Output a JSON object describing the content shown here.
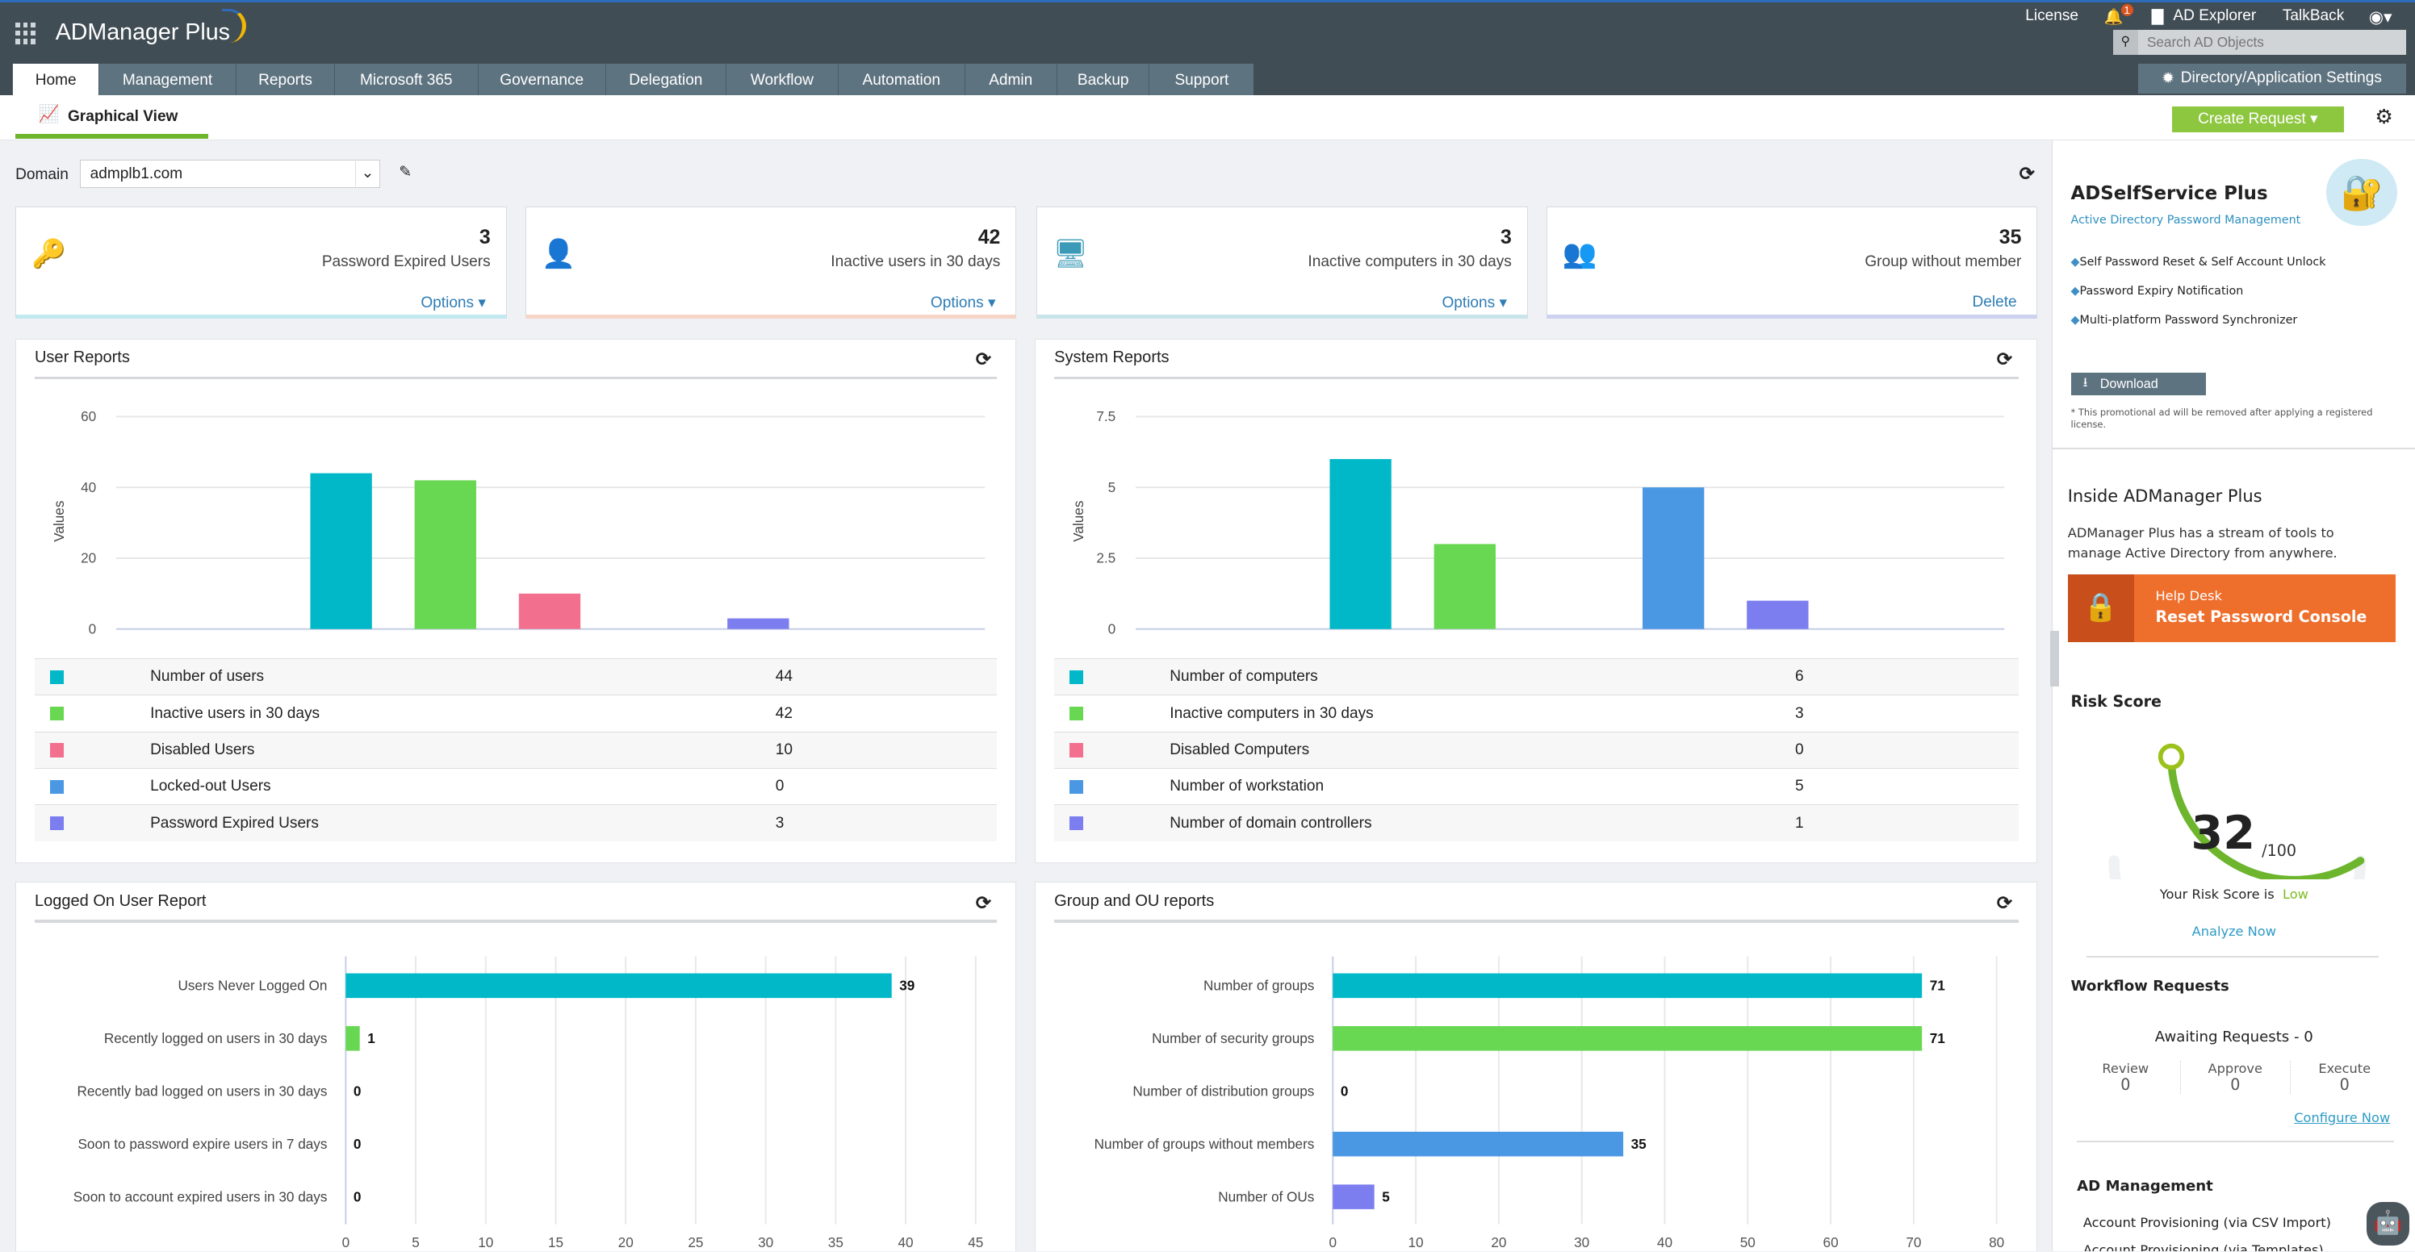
{
  "app": {
    "title": "ADManager Plus",
    "top_links": {
      "license": "License",
      "notif_count": "1",
      "ad_explorer": "AD Explorer",
      "talkback": "TalkBack"
    },
    "search_placeholder": "Search AD Objects",
    "settings_button": "Directory/Application Settings"
  },
  "tabs": [
    "Home",
    "Management",
    "Reports",
    "Microsoft 365",
    "Governance",
    "Delegation",
    "Workflow",
    "Automation",
    "Admin",
    "Backup",
    "Support"
  ],
  "subheader": {
    "view": "Graphical View",
    "create_request": "Create Request"
  },
  "domain": {
    "label": "Domain",
    "value": "admplb1.com"
  },
  "cards": [
    {
      "value": "3",
      "label": "Password Expired Users",
      "action": "Options ▾",
      "color": "#1aa9c6"
    },
    {
      "value": "42",
      "label": "Inactive users in 30 days",
      "action": "Options ▾",
      "color": "#e0622a"
    },
    {
      "value": "3",
      "label": "Inactive computers in 30 days",
      "action": "Options ▾",
      "color": "#3a9ab8"
    },
    {
      "value": "35",
      "label": "Group without member",
      "action": "Delete",
      "color": "#4055c8"
    }
  ],
  "panels": {
    "user": "User Reports",
    "system": "System Reports",
    "logon": "Logged On User Report",
    "group": "Group and OU reports"
  },
  "chart_data": [
    {
      "type": "bar",
      "title": "User Reports",
      "ylabel": "Values",
      "ylim": [
        0,
        60
      ],
      "yticks": [
        0,
        20,
        40,
        60
      ],
      "categories": [
        "Number of users",
        "Inactive users in 30 days",
        "Disabled Users",
        "Locked-out Users",
        "Password Expired Users"
      ],
      "values": [
        44,
        42,
        10,
        0,
        3
      ],
      "colors": [
        "#00b8c8",
        "#68d752",
        "#f2708e",
        "#4a98e4",
        "#7c7ef0"
      ],
      "grid": true,
      "legend": "bottom-table"
    },
    {
      "type": "bar",
      "title": "System Reports",
      "ylabel": "Values",
      "ylim": [
        0,
        7.5
      ],
      "yticks": [
        0,
        2.5,
        5,
        7.5
      ],
      "categories": [
        "Number of computers",
        "Inactive computers in 30 days",
        "Disabled Computers",
        "Number of workstation",
        "Number of domain controllers"
      ],
      "values": [
        6,
        3,
        0,
        5,
        1
      ],
      "colors": [
        "#00b8c8",
        "#68d752",
        "#f2708e",
        "#4a98e4",
        "#7c7ef0"
      ],
      "grid": true,
      "legend": "bottom-table"
    },
    {
      "type": "bar",
      "orientation": "horizontal",
      "title": "Logged On User Report",
      "xlim": [
        0,
        45
      ],
      "xticks": [
        0,
        5,
        10,
        15,
        20,
        25,
        30,
        35,
        40,
        45
      ],
      "categories": [
        "Users Never Logged On",
        "Recently logged on users in 30 days",
        "Recently bad logged on users in 30 days",
        "Soon to password expire users in 7 days",
        "Soon to account expired users in 30 days"
      ],
      "values": [
        39,
        1,
        0,
        0,
        0
      ],
      "colors": [
        "#00b8c8",
        "#68d752",
        "#f2708e",
        "#4a98e4",
        "#7c7ef0"
      ],
      "grid": true
    },
    {
      "type": "bar",
      "orientation": "horizontal",
      "title": "Group and OU reports",
      "xlim": [
        0,
        80
      ],
      "xticks": [
        0,
        10,
        20,
        30,
        40,
        50,
        60,
        70,
        80
      ],
      "categories": [
        "Number of groups",
        "Number of security groups",
        "Number of distribution groups",
        "Number of groups without members",
        "Number of OUs"
      ],
      "values": [
        71,
        71,
        0,
        35,
        5
      ],
      "colors": [
        "#00b8c8",
        "#68d752",
        "#f2708e",
        "#4a98e4",
        "#7c7ef0"
      ],
      "grid": true
    }
  ],
  "promo": {
    "title": "ADSelfService Plus",
    "subtitle": "Active Directory Password Management",
    "features": [
      "Self Password Reset & Self Account Unlock",
      "Password Expiry Notification",
      "Multi-platform Password Synchronizer"
    ],
    "download": "Download",
    "note": "* This promotional ad will be removed after applying a registered license."
  },
  "inside": {
    "title": "Inside ADManager Plus",
    "desc": "ADManager Plus has a stream of tools to manage Active Directory from anywhere.",
    "banner_top": "Help Desk",
    "banner_main": "Reset Password Console"
  },
  "risk": {
    "title": "Risk Score",
    "score": 32,
    "score_text": "32",
    "max_text": "/100",
    "status_prefix": "Your Risk Score is",
    "status": "Low",
    "status_color": "#7cbb1e",
    "analyze": "Analyze Now"
  },
  "workflow": {
    "title": "Workflow Requests",
    "awaiting": "Awaiting Requests - 0",
    "cols": [
      {
        "label": "Review",
        "value": "0"
      },
      {
        "label": "Approve",
        "value": "0"
      },
      {
        "label": "Execute",
        "value": "0"
      }
    ],
    "configure": "Configure Now"
  },
  "ad_management": {
    "title": "AD Management",
    "items": [
      "Account Provisioning (via CSV Import)",
      "Account Provisioning (via Templates)"
    ]
  }
}
